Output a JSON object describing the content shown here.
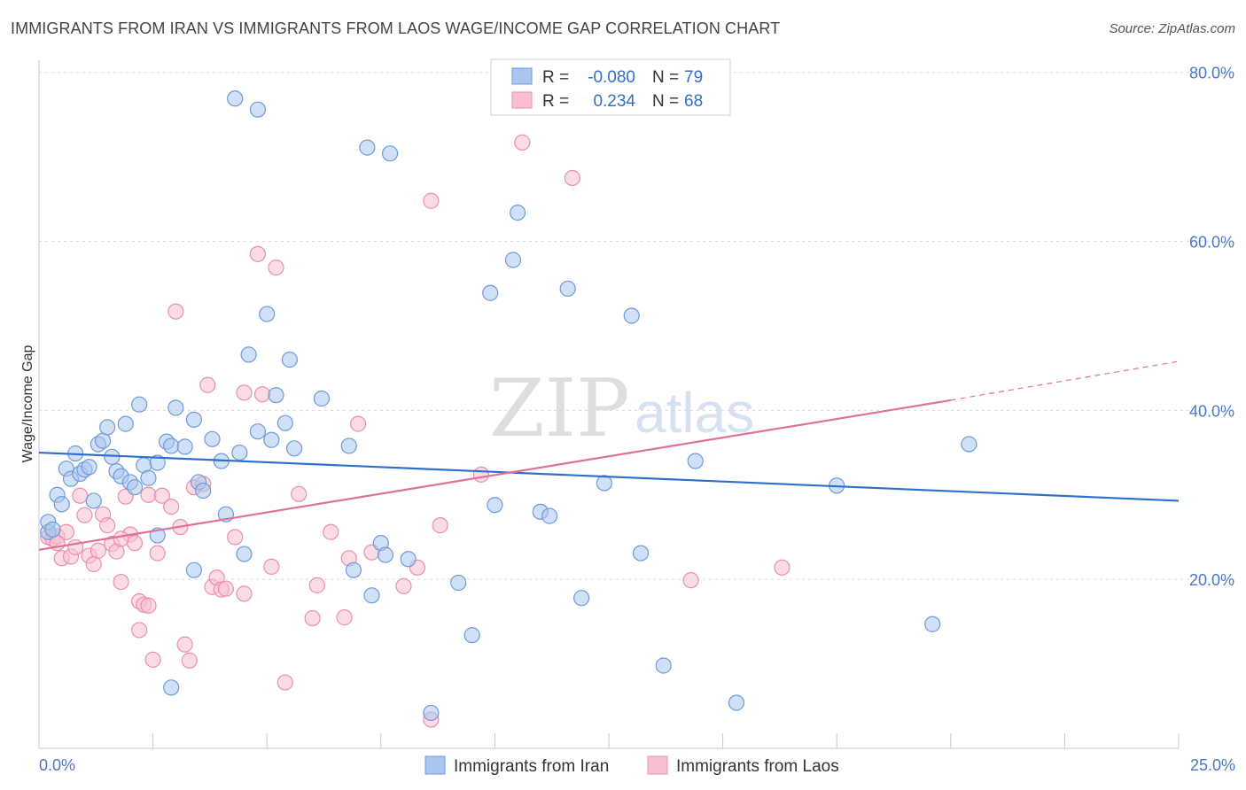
{
  "header": {
    "title": "IMMIGRANTS FROM IRAN VS IMMIGRANTS FROM LAOS WAGE/INCOME GAP CORRELATION CHART",
    "source": "Source: ZipAtlas.com"
  },
  "watermark": {
    "zip": "ZIP",
    "atlas": "atlas"
  },
  "colors": {
    "iran_fill": "#a9c6ef",
    "iran_stroke": "#6f9ad8",
    "iran_line": "#2f6fcc",
    "laos_fill": "#f7bfd0",
    "laos_stroke": "#e98fae",
    "laos_line": "#e0709a",
    "tick_label": "#4a78c8",
    "grid": "#d9d9d9"
  },
  "legend": {
    "rows": [
      {
        "r_label": "R =",
        "r_value": "-0.080",
        "n_label": "N =",
        "n_value": "79"
      },
      {
        "r_label": "R =",
        "r_value": "0.234",
        "n_label": "N =",
        "n_value": "68"
      }
    ]
  },
  "chart_data": {
    "type": "scatter",
    "ylabel": "Wage/Income Gap",
    "xlabel": "",
    "xlim": [
      0,
      25
    ],
    "ylim": [
      0,
      85
    ],
    "x_tick_labels": [
      {
        "value": 0,
        "label": "0.0%"
      },
      {
        "value": 25,
        "label": "25.0%"
      }
    ],
    "y_tick_labels": [
      {
        "value": 20,
        "label": "20.0%"
      },
      {
        "value": 40,
        "label": "40.0%"
      },
      {
        "value": 60,
        "label": "60.0%"
      },
      {
        "value": 80,
        "label": "80.0%"
      }
    ],
    "grid": true,
    "legend_position": "top-center",
    "series": [
      {
        "name": "Immigrants from Iran",
        "R": -0.08,
        "N": 79,
        "trend": {
          "x_start": 0,
          "y_start": 35.0,
          "x_end": 25,
          "y_end": 29.3
        },
        "points": [
          [
            0.2,
            25.6
          ],
          [
            0.2,
            26.8
          ],
          [
            0.3,
            25.9
          ],
          [
            0.4,
            30.0
          ],
          [
            0.5,
            28.9
          ],
          [
            0.6,
            33.1
          ],
          [
            0.7,
            31.9
          ],
          [
            0.8,
            34.9
          ],
          [
            0.9,
            32.5
          ],
          [
            1.0,
            33.0
          ],
          [
            1.1,
            33.3
          ],
          [
            1.2,
            29.3
          ],
          [
            1.3,
            36.0
          ],
          [
            1.4,
            36.4
          ],
          [
            1.5,
            38.0
          ],
          [
            1.6,
            34.5
          ],
          [
            1.7,
            32.8
          ],
          [
            1.9,
            38.4
          ],
          [
            1.8,
            32.2
          ],
          [
            2.0,
            31.5
          ],
          [
            2.1,
            30.9
          ],
          [
            2.2,
            40.7
          ],
          [
            2.3,
            33.5
          ],
          [
            2.4,
            32.0
          ],
          [
            2.6,
            33.8
          ],
          [
            2.8,
            36.3
          ],
          [
            2.9,
            35.8
          ],
          [
            3.0,
            40.3
          ],
          [
            3.2,
            35.7
          ],
          [
            3.4,
            38.9
          ],
          [
            3.5,
            31.5
          ],
          [
            3.6,
            30.5
          ],
          [
            3.8,
            36.6
          ],
          [
            4.1,
            27.7
          ],
          [
            4.0,
            34.0
          ],
          [
            4.4,
            35.0
          ],
          [
            4.5,
            23.0
          ],
          [
            4.6,
            46.6
          ],
          [
            4.8,
            37.5
          ],
          [
            5.0,
            51.4
          ],
          [
            5.1,
            36.5
          ],
          [
            5.2,
            41.8
          ],
          [
            5.4,
            38.5
          ],
          [
            5.5,
            46.0
          ],
          [
            5.6,
            35.5
          ],
          [
            6.2,
            41.4
          ],
          [
            6.8,
            35.8
          ],
          [
            6.9,
            21.1
          ],
          [
            7.2,
            71.1
          ],
          [
            7.3,
            18.1
          ],
          [
            7.5,
            24.3
          ],
          [
            7.6,
            22.9
          ],
          [
            7.7,
            70.4
          ],
          [
            8.1,
            22.4
          ],
          [
            9.2,
            19.6
          ],
          [
            9.5,
            13.4
          ],
          [
            9.9,
            53.9
          ],
          [
            10.0,
            28.8
          ],
          [
            10.4,
            57.8
          ],
          [
            10.5,
            63.4
          ],
          [
            11.0,
            28.0
          ],
          [
            11.2,
            27.5
          ],
          [
            11.6,
            54.4
          ],
          [
            11.9,
            17.8
          ],
          [
            12.4,
            31.4
          ],
          [
            13.0,
            51.2
          ],
          [
            13.2,
            23.1
          ],
          [
            13.7,
            9.8
          ],
          [
            14.4,
            34.0
          ],
          [
            15.3,
            5.4
          ],
          [
            17.5,
            31.1
          ],
          [
            19.6,
            14.7
          ],
          [
            20.4,
            36.0
          ],
          [
            2.9,
            7.2
          ],
          [
            3.4,
            21.1
          ],
          [
            2.6,
            25.2
          ],
          [
            4.8,
            75.6
          ],
          [
            4.3,
            76.9
          ],
          [
            8.6,
            4.2
          ]
        ]
      },
      {
        "name": "Immigrants from Laos",
        "R": 0.234,
        "N": 68,
        "trend": {
          "x_start": 0,
          "y_start": 23.5,
          "x_end": 20,
          "y_end": 41.2,
          "dash_x_end": 25,
          "dash_y_end": 45.8
        },
        "points": [
          [
            0.2,
            25.0
          ],
          [
            0.3,
            24.8
          ],
          [
            0.4,
            25.1
          ],
          [
            0.5,
            22.5
          ],
          [
            0.6,
            25.6
          ],
          [
            0.7,
            22.7
          ],
          [
            0.8,
            23.8
          ],
          [
            0.9,
            29.9
          ],
          [
            1.0,
            27.6
          ],
          [
            1.1,
            22.8
          ],
          [
            1.2,
            21.8
          ],
          [
            1.3,
            23.4
          ],
          [
            1.4,
            27.7
          ],
          [
            1.5,
            26.4
          ],
          [
            1.6,
            24.2
          ],
          [
            1.7,
            23.3
          ],
          [
            1.8,
            19.7
          ],
          [
            1.9,
            29.8
          ],
          [
            2.0,
            25.3
          ],
          [
            2.2,
            17.4
          ],
          [
            2.1,
            24.3
          ],
          [
            2.3,
            17.0
          ],
          [
            2.4,
            30.0
          ],
          [
            2.5,
            10.5
          ],
          [
            2.6,
            23.1
          ],
          [
            2.7,
            29.9
          ],
          [
            2.9,
            28.6
          ],
          [
            3.0,
            51.7
          ],
          [
            3.1,
            26.2
          ],
          [
            3.2,
            12.3
          ],
          [
            3.3,
            10.4
          ],
          [
            3.4,
            30.9
          ],
          [
            3.6,
            31.3
          ],
          [
            3.8,
            19.1
          ],
          [
            3.9,
            20.2
          ],
          [
            4.0,
            18.8
          ],
          [
            4.1,
            18.9
          ],
          [
            4.3,
            25.0
          ],
          [
            4.5,
            18.3
          ],
          [
            4.8,
            58.5
          ],
          [
            4.9,
            41.9
          ],
          [
            5.1,
            21.5
          ],
          [
            5.2,
            56.9
          ],
          [
            5.4,
            7.8
          ],
          [
            5.7,
            30.1
          ],
          [
            6.0,
            15.4
          ],
          [
            6.1,
            19.3
          ],
          [
            6.4,
            25.6
          ],
          [
            6.7,
            15.5
          ],
          [
            7.0,
            38.4
          ],
          [
            7.3,
            23.2
          ],
          [
            8.0,
            19.2
          ],
          [
            8.3,
            21.4
          ],
          [
            8.6,
            64.8
          ],
          [
            8.8,
            26.4
          ],
          [
            8.6,
            3.4
          ],
          [
            10.6,
            71.7
          ],
          [
            11.7,
            67.5
          ],
          [
            14.3,
            19.9
          ],
          [
            16.3,
            21.4
          ],
          [
            2.2,
            14.0
          ],
          [
            3.7,
            43.0
          ],
          [
            9.7,
            32.4
          ],
          [
            0.4,
            24.3
          ],
          [
            1.8,
            24.8
          ],
          [
            2.4,
            16.9
          ],
          [
            4.5,
            42.1
          ],
          [
            6.8,
            22.5
          ]
        ]
      }
    ]
  },
  "bottom_legend": {
    "items": [
      {
        "label": "Immigrants from Iran"
      },
      {
        "label": "Immigrants from Laos"
      }
    ]
  }
}
